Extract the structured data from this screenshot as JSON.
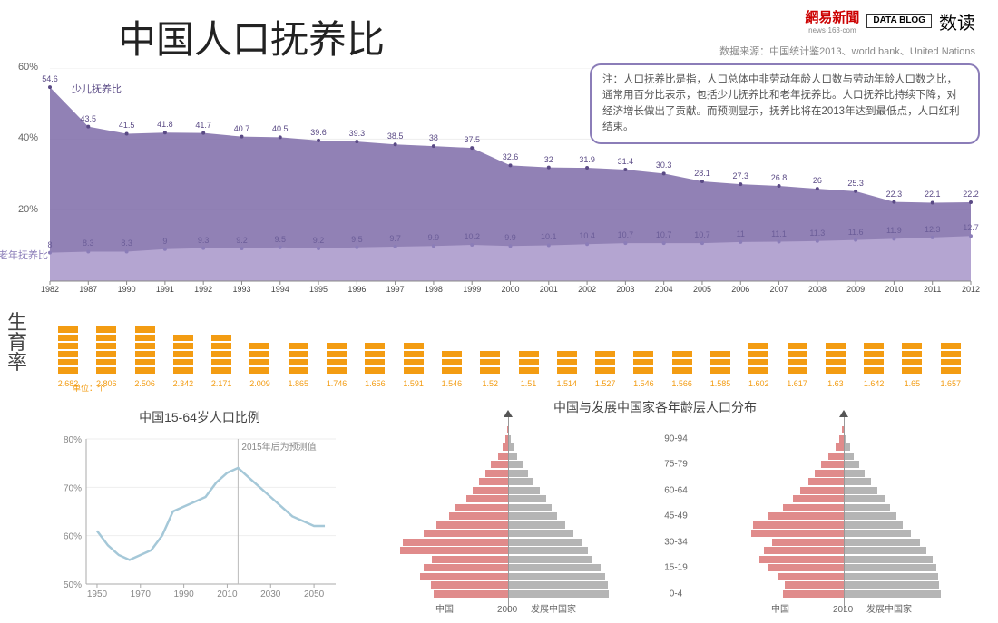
{
  "title": "中国人口抚养比",
  "header": {
    "logo1": "網易新聞",
    "logo1_sub": "news·163·com",
    "logo2": "DATA BLOG",
    "logo3": "数读"
  },
  "source": "数据来源：中国统计鉴2013、world bank、United Nations",
  "note": "注：人口抚养比是指，人口总体中非劳动年龄人口数与劳动年龄人口数之比，通常用百分比表示，包括少儿抚养比和老年抚养比。人口抚养比持续下降，对经济增长做出了贡献。而预测显示，抚养比将在2013年达到最低点，人口红利结束。",
  "colors": {
    "purple_dark": "#7e6ba8",
    "purple_light": "#b8a9d4",
    "orange": "#f39c12",
    "blue": "#a5c8d8",
    "red": "#e08b8b",
    "grey": "#b5b5b5",
    "text": "#555"
  },
  "main_chart": {
    "type": "area",
    "ylabel_pct": "%",
    "ylim": [
      0,
      60
    ],
    "ytick": [
      20,
      40,
      60
    ],
    "series1_label": "少儿抚养比",
    "series1_color": "#7e6ba8",
    "series2_label": "老年抚养比",
    "series2_color": "#b8a9d4",
    "years": [
      1982,
      1987,
      1990,
      1991,
      1992,
      1993,
      1994,
      1995,
      1996,
      1997,
      1998,
      1999,
      2000,
      2001,
      2002,
      2003,
      2004,
      2005,
      2006,
      2007,
      2008,
      2009,
      2010,
      2011,
      2012
    ],
    "child": [
      54.6,
      43.5,
      41.5,
      41.8,
      41.7,
      40.7,
      40.5,
      39.6,
      39.3,
      38.5,
      38,
      37.5,
      32.6,
      32,
      31.9,
      31.4,
      30.3,
      28.1,
      27.3,
      26.8,
      26,
      25.3,
      22.3,
      22.1,
      22.2
    ],
    "elder": [
      8,
      8.3,
      8.3,
      9,
      9.3,
      9.2,
      9.5,
      9.2,
      9.5,
      9.7,
      9.9,
      10.2,
      9.9,
      10.1,
      10.4,
      10.7,
      10.7,
      10.7,
      11,
      11.1,
      11.3,
      11.6,
      11.9,
      12.3,
      12.7
    ]
  },
  "fertility": {
    "title": "生育率",
    "unit": "单位：个",
    "values": [
      2.682,
      2.806,
      2.506,
      2.342,
      2.171,
      2.009,
      1.865,
      1.746,
      1.656,
      1.591,
      1.546,
      1.52,
      1.51,
      1.514,
      1.527,
      1.546,
      1.566,
      1.585,
      1.602,
      1.617,
      1.63,
      1.642,
      1.65,
      1.657
    ]
  },
  "sub_chart1": {
    "title": "中国15-64岁人口比例",
    "note": "2015年后为预测值",
    "ylim": [
      50,
      80
    ],
    "ytick": [
      "50%",
      "60%",
      "70%",
      "80%"
    ],
    "xtick": [
      1950,
      1970,
      1990,
      2010,
      2030,
      2050
    ],
    "vline_year": 2015,
    "line_color": "#a5c8d8",
    "data_x": [
      1950,
      1955,
      1960,
      1965,
      1970,
      1975,
      1980,
      1985,
      1990,
      1995,
      2000,
      2005,
      2010,
      2015,
      2020,
      2025,
      2030,
      2035,
      2040,
      2045,
      2050,
      2055
    ],
    "data_y": [
      61,
      58,
      56,
      55,
      56,
      57,
      60,
      65,
      66,
      67,
      68,
      71,
      73,
      74,
      72,
      70,
      68,
      66,
      64,
      63,
      62,
      62
    ]
  },
  "pyramids": {
    "title": "中国与发展中国家各年龄层人口分布",
    "age_labels": [
      "0-4",
      "15-19",
      "30-34",
      "45-49",
      "60-64",
      "75-79",
      "90-94"
    ],
    "foot_left": "中国",
    "foot_right": "发展中国家",
    "year1": "2000",
    "year2": "2010",
    "china_color": "#e08b8b",
    "dev_color": "#b5b5b5",
    "p2000": {
      "china": [
        88,
        92,
        105,
        100,
        90,
        128,
        125,
        100,
        85,
        70,
        62,
        50,
        42,
        35,
        27,
        20,
        12,
        6,
        3,
        1
      ],
      "dev": [
        120,
        118,
        115,
        110,
        100,
        95,
        88,
        78,
        68,
        58,
        52,
        45,
        38,
        30,
        24,
        17,
        11,
        6,
        3,
        1
      ]
    },
    "p2010": {
      "china": [
        72,
        70,
        78,
        90,
        100,
        95,
        85,
        110,
        108,
        90,
        72,
        60,
        52,
        42,
        35,
        27,
        18,
        10,
        5,
        2
      ],
      "dev": [
        115,
        113,
        112,
        110,
        105,
        98,
        90,
        80,
        70,
        62,
        55,
        48,
        40,
        32,
        25,
        18,
        12,
        7,
        3,
        1
      ]
    }
  }
}
